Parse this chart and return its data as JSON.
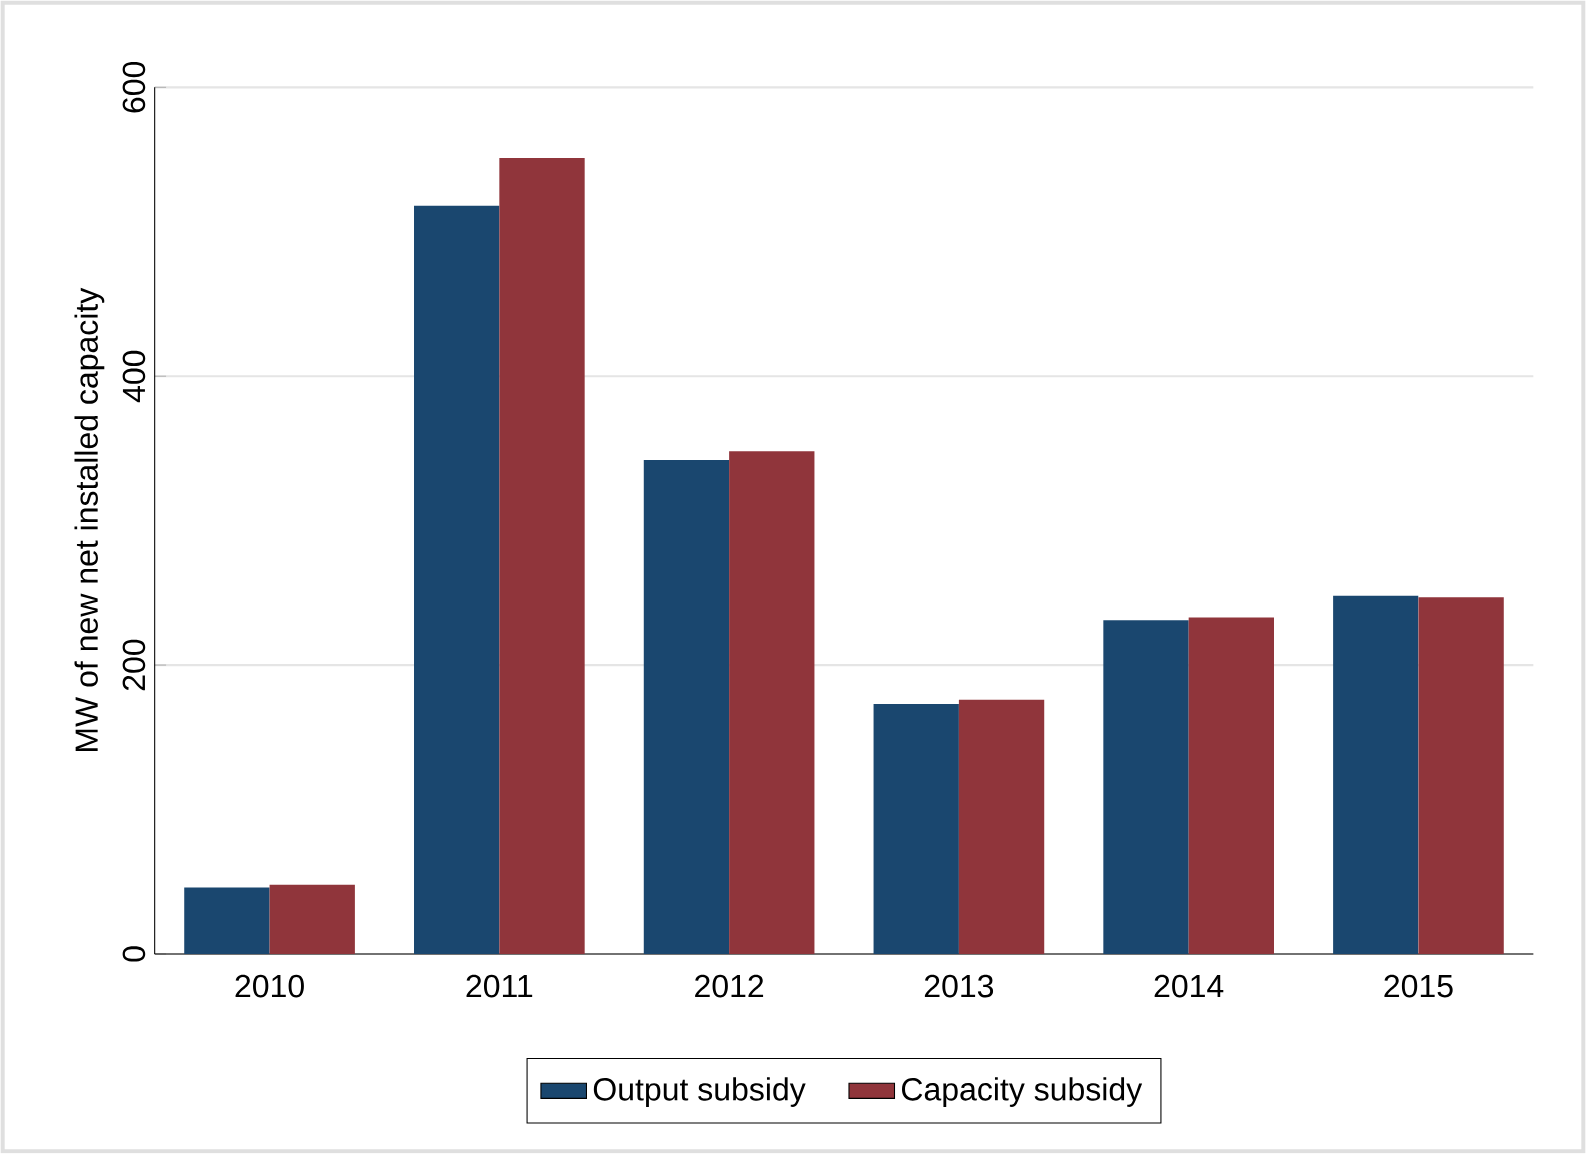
{
  "chart_data": {
    "type": "bar",
    "ylabel": "MW of new net installed capacity",
    "categories": [
      "2010",
      "2011",
      "2012",
      "2013",
      "2014",
      "2015"
    ],
    "series": [
      {
        "name": "Output subsidy",
        "color": "#1a476f",
        "values": [
          46,
          518,
          342,
          173,
          231,
          248
        ]
      },
      {
        "name": "Capacity subsidy",
        "color": "#90353b",
        "values": [
          48,
          551,
          348,
          176,
          233,
          247
        ]
      }
    ],
    "ylim": [
      0,
      600
    ],
    "yticks": [
      0,
      200,
      400,
      600
    ],
    "grid": "y",
    "legend": "bottom"
  }
}
